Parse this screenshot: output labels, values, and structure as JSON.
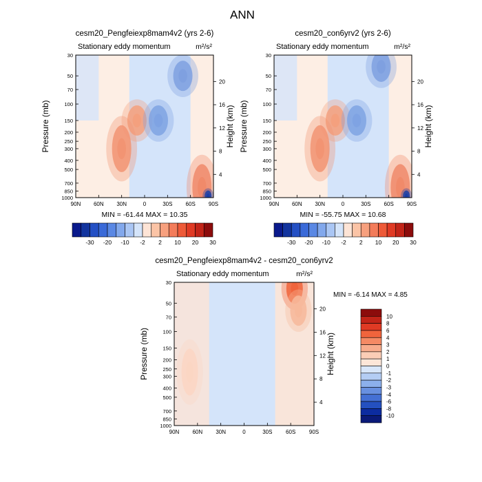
{
  "figure_title": "ANN",
  "chart_data": [
    {
      "type": "heatmap",
      "title": "cesm20_Pengfeiexp8mam4v2 (yrs 2-6)",
      "subtitle": "Stationary eddy momentum",
      "units": "m²/s²",
      "xlabel": "",
      "ylabel": "Pressure (mb)",
      "ylabel_right": "Height (km)",
      "x_ticks": [
        "90N",
        "60N",
        "30N",
        "0",
        "30S",
        "60S",
        "90S"
      ],
      "y_ticks": [
        "30",
        "50",
        "70",
        "100",
        "150",
        "200",
        "250",
        "300",
        "400",
        "500",
        "700",
        "850",
        "1000"
      ],
      "y_right_ticks": [
        "4",
        "8",
        "12",
        "16",
        "20"
      ],
      "ylim": [
        1000,
        30
      ],
      "xlim": [
        90,
        -90
      ],
      "log_pressure_axis": true,
      "stats": {
        "min": "-61.44",
        "max": "10.35",
        "text": "MIN = -61.44   MAX = 10.35"
      },
      "colorbar": {
        "orientation": "horizontal",
        "labels": [
          "-30",
          "-20",
          "-10",
          "-2",
          "2",
          "10",
          "20",
          "30"
        ]
      },
      "features": [
        {
          "x": 10,
          "p": 150,
          "value": 10,
          "color": "#f4a07e"
        },
        {
          "x": -18,
          "p": 150,
          "value": -10,
          "color": "#7fa3e3"
        },
        {
          "x": 30,
          "p": 300,
          "value": 6,
          "color": "#f29473"
        },
        {
          "x": -50,
          "p": 50,
          "value": -10,
          "color": "#7fa0e0"
        },
        {
          "x": -75,
          "p": 780,
          "value": 10,
          "color": "#f08a6a"
        },
        {
          "x": -83,
          "p": 960,
          "value": -61.44,
          "color": "#1b3fa6"
        }
      ]
    },
    {
      "type": "heatmap",
      "title": "cesm20_con6yrv2 (yrs 2-6)",
      "subtitle": "Stationary eddy momentum",
      "units": "m²/s²",
      "xlabel": "",
      "ylabel": "Pressure (mb)",
      "ylabel_right": "Height (km)",
      "x_ticks": [
        "90N",
        "60N",
        "30N",
        "0",
        "30S",
        "60S",
        "90S"
      ],
      "y_ticks": [
        "30",
        "50",
        "70",
        "100",
        "150",
        "200",
        "250",
        "300",
        "400",
        "500",
        "700",
        "850",
        "1000"
      ],
      "y_right_ticks": [
        "4",
        "8",
        "12",
        "16",
        "20"
      ],
      "ylim": [
        1000,
        30
      ],
      "xlim": [
        90,
        -90
      ],
      "log_pressure_axis": true,
      "stats": {
        "min": "-55.75",
        "max": "10.68",
        "text": "MIN = -55.75   MAX = 10.68"
      },
      "colorbar": {
        "orientation": "horizontal",
        "labels": [
          "-30",
          "-20",
          "-10",
          "-2",
          "2",
          "10",
          "20",
          "30"
        ]
      },
      "features": [
        {
          "x": 10,
          "p": 150,
          "value": 10,
          "color": "#f4a07e"
        },
        {
          "x": -18,
          "p": 150,
          "value": -10,
          "color": "#7fa3e3"
        },
        {
          "x": 30,
          "p": 300,
          "value": 6,
          "color": "#f29473"
        },
        {
          "x": -50,
          "p": 40,
          "value": -10,
          "color": "#7fa0e0"
        },
        {
          "x": -75,
          "p": 780,
          "value": 10,
          "color": "#f08a6a"
        },
        {
          "x": -83,
          "p": 960,
          "value": -55.75,
          "color": "#1b3fa6"
        }
      ]
    },
    {
      "type": "heatmap",
      "title": "cesm20_Pengfeiexp8mam4v2 - cesm20_con6yrv2",
      "subtitle": "Stationary eddy momentum",
      "units": "m²/s²",
      "xlabel": "",
      "ylabel": "Pressure (mb)",
      "ylabel_right": "Height (km)",
      "x_ticks": [
        "90N",
        "60N",
        "30N",
        "0",
        "30S",
        "60S",
        "90S"
      ],
      "y_ticks": [
        "30",
        "50",
        "70",
        "100",
        "150",
        "200",
        "250",
        "300",
        "400",
        "500",
        "700",
        "850",
        "1000"
      ],
      "y_right_ticks": [
        "4",
        "8",
        "12",
        "16",
        "20"
      ],
      "ylim": [
        1000,
        30
      ],
      "xlim": [
        90,
        -90
      ],
      "log_pressure_axis": true,
      "stats": {
        "min": "-6.14",
        "max": "4.85",
        "text": "MIN =  -6.14   MAX =   4.85"
      },
      "colorbar": {
        "orientation": "vertical",
        "labels": [
          "10",
          "8",
          "6",
          "4",
          "3",
          "2",
          "1",
          "0",
          "-1",
          "-2",
          "-3",
          "-4",
          "-6",
          "-8",
          "-10"
        ]
      },
      "features": [
        {
          "x": -65,
          "p": 35,
          "value": 4.85,
          "color": "#f0643c"
        },
        {
          "x": -70,
          "p": 60,
          "value": 2,
          "color": "#f7b99b"
        },
        {
          "x": 70,
          "p": 270,
          "value": 1,
          "color": "#fbd6c3"
        }
      ]
    }
  ],
  "colors": {
    "bg_negative": "#d4e4fa",
    "bg_positive": "#fde4d6",
    "panel_bg": "#fdeee4",
    "colorbar_horizontal": [
      "#0a1a8c",
      "#12349e",
      "#2450c4",
      "#3a6ad8",
      "#5a88e4",
      "#82a8ec",
      "#aac6f4",
      "#d4e4fa",
      "#fde4d6",
      "#fbc4a6",
      "#f7a07e",
      "#f37c5a",
      "#ee5a38",
      "#e03a24",
      "#c22418",
      "#8c0c0c"
    ],
    "colorbar_vertical": [
      "#8c0c0c",
      "#c22418",
      "#e03a24",
      "#f0643c",
      "#f58a64",
      "#f8ac8c",
      "#fbcdb6",
      "#fde6d8",
      "#d8e6fa",
      "#b4cdf4",
      "#8cb0ec",
      "#6890e0",
      "#4470d4",
      "#2450c0",
      "#0c2ca0",
      "#0a1a78"
    ]
  }
}
